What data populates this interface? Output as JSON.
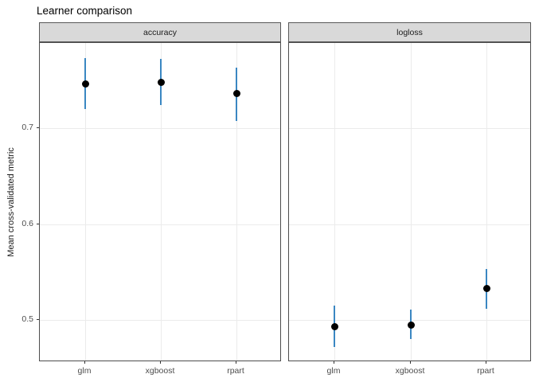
{
  "title": "Learner comparison",
  "ylabel": "Mean cross-validated metric",
  "chart_data": {
    "type": "scatter",
    "subtype": "pointrange-faceted",
    "title": "Learner comparison",
    "xlabel": "",
    "ylabel": "Mean cross-validated metric",
    "categories": [
      "glm",
      "xgboost",
      "rpart"
    ],
    "yticks": [
      0.5,
      0.6,
      0.7
    ],
    "ylim": [
      0.456,
      0.789
    ],
    "grid": "major",
    "legend": "none",
    "facets": [
      {
        "label": "accuracy",
        "points": [
          {
            "x": "glm",
            "mean": 0.746,
            "lower": 0.72,
            "upper": 0.773
          },
          {
            "x": "xgboost",
            "mean": 0.748,
            "lower": 0.724,
            "upper": 0.772
          },
          {
            "x": "rpart",
            "mean": 0.736,
            "lower": 0.708,
            "upper": 0.763
          }
        ]
      },
      {
        "label": "logloss",
        "points": [
          {
            "x": "glm",
            "mean": 0.493,
            "lower": 0.472,
            "upper": 0.515
          },
          {
            "x": "xgboost",
            "mean": 0.495,
            "lower": 0.48,
            "upper": 0.511
          },
          {
            "x": "rpart",
            "mean": 0.533,
            "lower": 0.512,
            "upper": 0.553
          }
        ]
      }
    ],
    "colors": {
      "point": "#000000",
      "errorbar": "#3a87c2",
      "strip_bg": "#d9d9d9",
      "strip_border": "#595959",
      "panel_border": "#4d4d4d",
      "gridline": "#ebebeb",
      "tick_label": "#4d4d4d",
      "title_text": "#000000"
    }
  }
}
